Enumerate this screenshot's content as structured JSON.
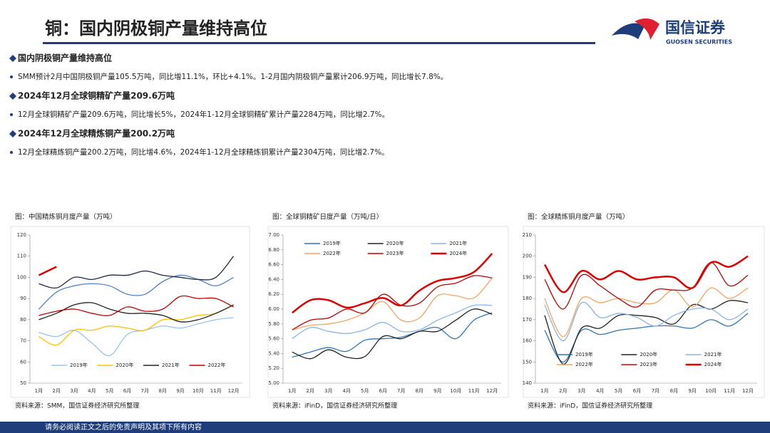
{
  "header": {
    "title": "铜：国内阴极铜产量维持高位",
    "logo_name": "国信证券",
    "logo_en": "GUOSEN SECURITIES"
  },
  "sections": [
    {
      "heading": "国内阴极铜产量维持高位",
      "text": "SMM预计2月中国阴极铜产量105.5万吨，同比增11.1%，环比+4.1%。1-2月国内阴极铜产量累计206.9万吨，同比增长7.8%。"
    },
    {
      "heading": "2024年12月全球铜精矿产量209.6万吨",
      "text": "12月全球铜精矿产量209.6万吨，同比增长5%，2024年1-12月全球铜精矿累计产量2284万吨，同比增2.7%。"
    },
    {
      "heading": "2024年12月全球精炼铜产量200.2万吨",
      "text": "12月全球精炼铜产量200.2万吨，同比增4.6%，2024年1-12月全球精炼铜累计产量2304万吨，同比增2.7%。"
    }
  ],
  "footer": "请务必阅读正文之后的免责声明及其项下所有内容",
  "chart_data": [
    {
      "type": "line",
      "title": "图：中国精炼铜月度产量（万吨）",
      "source": "资料来源：SMM，国信证券经济研究所整理",
      "categories": [
        "1月",
        "2月",
        "3月",
        "4月",
        "5月",
        "6月",
        "7月",
        "8月",
        "9月",
        "10月",
        "11月",
        "12月"
      ],
      "ylim": [
        50,
        120
      ],
      "yticks": [
        50,
        60,
        70,
        80,
        90,
        100,
        110,
        120
      ],
      "legend": "bottom",
      "series": [
        {
          "name": "2019年",
          "color": "#9dc3e6",
          "values": [
            74,
            72,
            75,
            69,
            63,
            73,
            75,
            77,
            76,
            78,
            80,
            81
          ]
        },
        {
          "name": "2020年",
          "color": "#ffc000",
          "values": [
            72,
            68,
            75,
            75,
            77,
            76,
            75,
            80,
            80,
            82,
            83,
            87
          ]
        },
        {
          "name": "2021年",
          "color": "#222222",
          "values": [
            80,
            83,
            87,
            88,
            85,
            83,
            83,
            82,
            79,
            80,
            83,
            87
          ]
        },
        {
          "name": "2022年",
          "color": "#c00000",
          "values": [
            82,
            84,
            85,
            83,
            82,
            86,
            84,
            85,
            91,
            90,
            90,
            86
          ]
        },
        {
          "color": "#4f81bd",
          "values": [
            85,
            93,
            96,
            97,
            96,
            92,
            92,
            98,
            101,
            99,
            96,
            100
          ]
        },
        {
          "color": "#1f2a44",
          "values": [
            97,
            95,
            100,
            99,
            101,
            101,
            103,
            101,
            100,
            99,
            100,
            110
          ]
        },
        {
          "color": "#e00000",
          "width": 2.5,
          "values": [
            101,
            105,
            null,
            null,
            null,
            null,
            null,
            null,
            null,
            null,
            null,
            null
          ]
        }
      ]
    },
    {
      "type": "line",
      "title": "图：全球铜精矿日度产量（万吨/日）",
      "source": "资料来源：iFinD，国信证券经济研究所整理",
      "categories": [
        "1月",
        "2月",
        "3月",
        "4月",
        "5月",
        "6月",
        "7月",
        "8月",
        "9月",
        "10月",
        "11月",
        "12月"
      ],
      "ylim": [
        5,
        7
      ],
      "yticks": [
        {
          "value": 5,
          "label": "5.00"
        },
        {
          "value": 5.2,
          "label": "5.20"
        },
        {
          "value": 5.4,
          "label": "5.40"
        },
        {
          "value": 5.6,
          "label": "5.60"
        },
        {
          "value": 5.8,
          "label": "5.80"
        },
        {
          "value": 6,
          "label": "6.00"
        },
        {
          "value": 6.2,
          "label": "6.20"
        },
        {
          "value": 6.4,
          "label": "6.40"
        },
        {
          "value": 6.6,
          "label": "6.60"
        },
        {
          "value": 6.8,
          "label": "6.80"
        },
        {
          "value": 7,
          "label": "7.00"
        }
      ],
      "legend": "top",
      "series": [
        {
          "name": "2019年",
          "color": "#2e75b6",
          "values": [
            5.35,
            5.42,
            5.48,
            5.43,
            5.58,
            5.6,
            5.62,
            5.7,
            5.75,
            5.6,
            5.85,
            5.95
          ]
        },
        {
          "name": "2020年",
          "color": "#222222",
          "values": [
            5.42,
            5.33,
            5.45,
            5.35,
            5.36,
            5.63,
            5.6,
            5.7,
            5.7,
            5.85,
            6,
            5.93
          ]
        },
        {
          "name": "2021年",
          "color": "#8db4e2",
          "values": [
            5.6,
            5.75,
            5.7,
            5.67,
            5.72,
            5.82,
            5.7,
            5.72,
            5.85,
            5.95,
            6.05,
            6.05
          ]
        },
        {
          "name": "2022年",
          "color": "#f4a460",
          "values": [
            5.72,
            5.78,
            5.8,
            5.85,
            5.95,
            6.1,
            5.85,
            5.88,
            6.18,
            6.18,
            6.15,
            6.42
          ]
        },
        {
          "name": "2023年",
          "color": "#c00000",
          "values": [
            5.72,
            5.85,
            5.88,
            6,
            5.95,
            6.2,
            6.05,
            6.08,
            6.3,
            6.35,
            6.45,
            6.42
          ]
        },
        {
          "name": "2024年",
          "color": "#e00000",
          "width": 2.5,
          "values": [
            5.95,
            6.12,
            6.12,
            6.02,
            6.08,
            6.15,
            6.05,
            6.25,
            6.38,
            6.42,
            6.5,
            6.75
          ]
        }
      ]
    },
    {
      "type": "line",
      "title": "图：全球精炼铜月度产量（万吨）",
      "source": "资料来源：iFinD，国信证券经济研究所整理",
      "categories": [
        "1月",
        "2月",
        "3月",
        "4月",
        "5月",
        "6月",
        "7月",
        "8月",
        "9月",
        "10月",
        "11月",
        "12月"
      ],
      "ylim": [
        140,
        210
      ],
      "yticks": [
        140,
        150,
        160,
        170,
        180,
        190,
        200,
        210
      ],
      "legend": "bottom",
      "series": [
        {
          "name": "2019年",
          "color": "#2e75b6",
          "values": [
            165,
            150,
            165,
            163,
            165,
            166,
            167,
            167,
            166,
            170,
            167,
            173
          ]
        },
        {
          "name": "2020年",
          "color": "#222222",
          "values": [
            172,
            149,
            166,
            166,
            172,
            172,
            171,
            168,
            177,
            175,
            179,
            178
          ]
        },
        {
          "name": "2021年",
          "color": "#8db4e2",
          "values": [
            177,
            160,
            178,
            171,
            173,
            171,
            167,
            172,
            175,
            175,
            170,
            175
          ]
        },
        {
          "name": "2022年",
          "color": "#f4a460",
          "values": [
            180,
            162,
            180,
            178,
            180,
            178,
            178,
            184,
            176,
            185,
            180,
            185
          ]
        },
        {
          "name": "2023年",
          "color": "#c00000",
          "values": [
            189,
            175,
            191,
            186,
            180,
            176,
            184,
            184,
            185,
            197,
            186,
            191
          ]
        },
        {
          "name": "2024年",
          "color": "#e00000",
          "width": 2.5,
          "values": [
            196,
            183,
            193,
            189,
            193,
            189,
            190,
            190,
            185,
            197,
            195,
            200
          ]
        }
      ]
    }
  ]
}
